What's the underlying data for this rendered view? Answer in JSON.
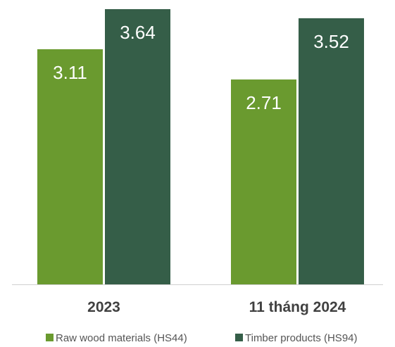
{
  "chart_data": {
    "type": "bar",
    "categories": [
      "2023",
      "11 tháng 2024"
    ],
    "series": [
      {
        "name": "Raw wood materials (HS44)",
        "values": [
          3.11,
          2.71
        ],
        "color": "#6a9a2f"
      },
      {
        "name": "Timber products (HS94)",
        "values": [
          3.64,
          3.52
        ],
        "color": "#355e48"
      }
    ],
    "title": "",
    "xlabel": "",
    "ylabel": "",
    "ylim": [
      0,
      3.64
    ],
    "grid": false,
    "legend": "bottom"
  }
}
